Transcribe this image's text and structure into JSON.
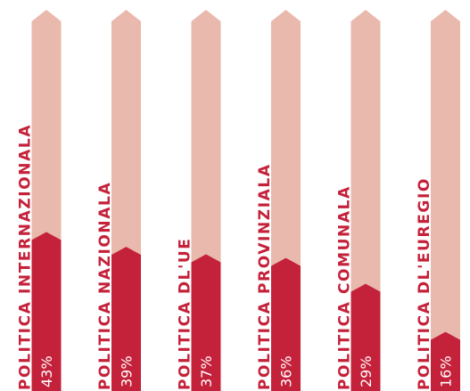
{
  "chart_data": {
    "type": "bar",
    "orientation": "vertical",
    "categories": [
      "POLITICA INTERNAZIONALA",
      "POLITICA NAZIONALA",
      "POLITICA DL'UE",
      "POLITICA PROVINZIALA",
      "POLITICA COMUNALA",
      "POLITICA DL'EUREGIO"
    ],
    "values": [
      43,
      39,
      37,
      36,
      29,
      16
    ],
    "value_labels": [
      "43%",
      "39%",
      "37%",
      "36%",
      "29%",
      "16%"
    ],
    "ylim": [
      0,
      100
    ],
    "title": "",
    "xlabel": "",
    "ylabel": "",
    "grid": false,
    "legend": "none",
    "colors": {
      "bar_fill": "#c4213a",
      "bar_background": "#e8b9ac",
      "label_on_background": "#c4213a",
      "label_on_fill": "#ffffff"
    }
  }
}
